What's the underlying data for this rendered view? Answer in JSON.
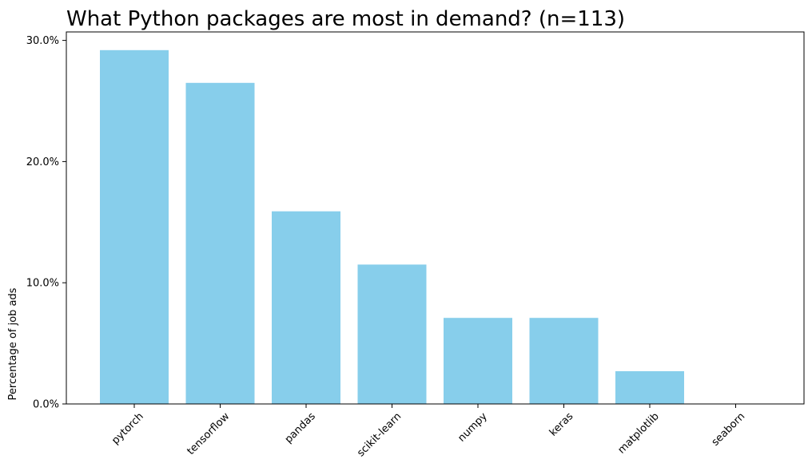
{
  "chart_data": {
    "type": "bar",
    "title": "What Python packages are most in demand? (n=113)",
    "xlabel": "",
    "ylabel": "Percentage of job ads",
    "categories": [
      "pytorch",
      "tensorflow",
      "pandas",
      "scikit-learn",
      "numpy",
      "keras",
      "matplotlib",
      "seaborn"
    ],
    "values": [
      29.2,
      26.5,
      15.9,
      11.5,
      7.1,
      7.1,
      2.7,
      0.0
    ],
    "ylim": [
      0,
      30.7
    ],
    "yticks": [
      0,
      10,
      20,
      30
    ],
    "ytick_labels": [
      "0.0%",
      "10.0%",
      "20.0%",
      "30.0%"
    ],
    "grid": false,
    "colors": {
      "bar": "#87CEEB",
      "axis": "#000000",
      "text": "#000000"
    }
  }
}
